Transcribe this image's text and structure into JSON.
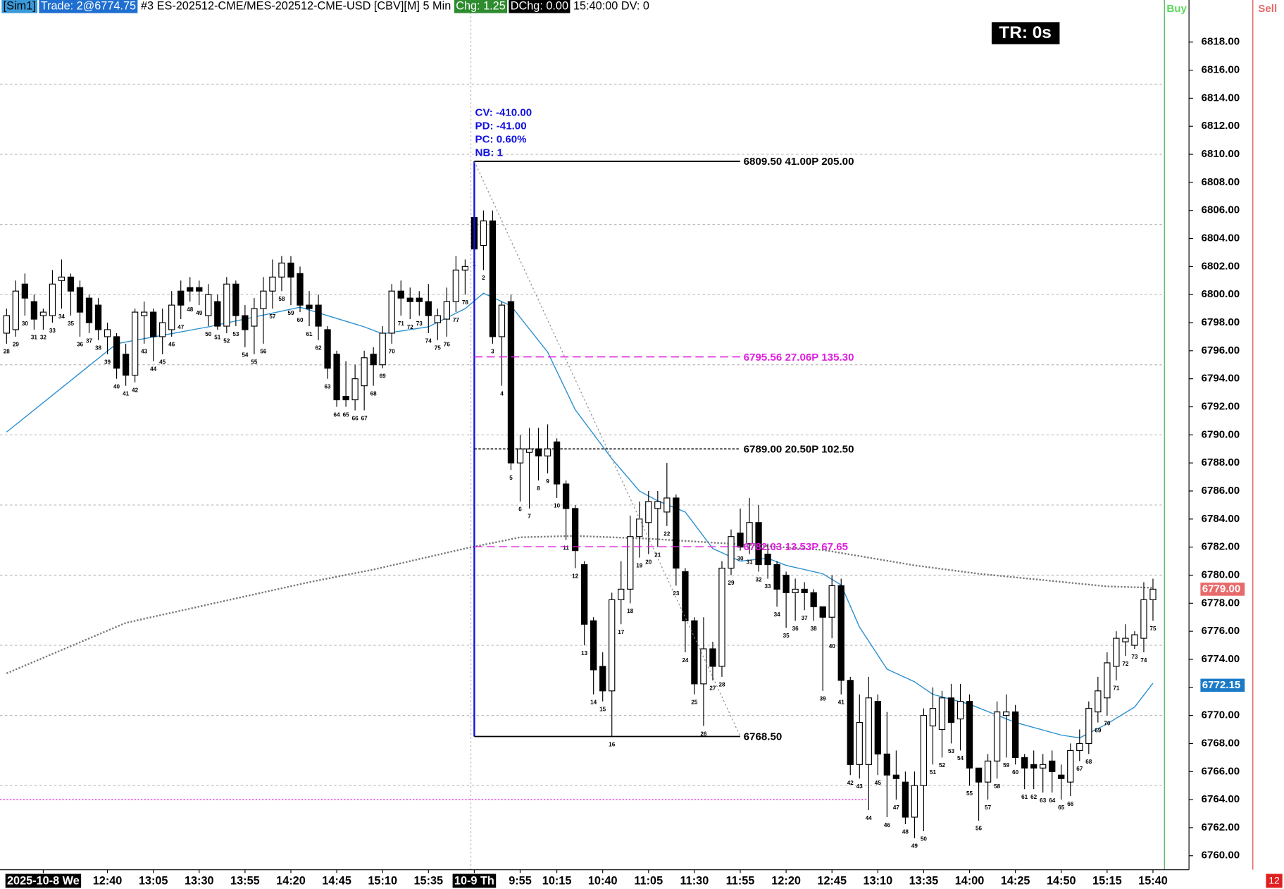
{
  "header": {
    "account": "[Sim1]",
    "trade": "Trade: 2@6774.75",
    "symbol": "#3 ES-202512-CME/MES-202512-CME-USD [CBV][M]  5 Min",
    "chg": "Chg: 1.25",
    "dchg": "DChg: 0.00",
    "status": "15:40:00 DV: 0"
  },
  "tr_label": "TR: 0s",
  "buy_label": "Buy",
  "sell_label": "Sell",
  "corner_label": "12",
  "chart_data": {
    "type": "candlestick",
    "categories": [
      28,
      29,
      30,
      31,
      32,
      33,
      34,
      35,
      36,
      37,
      38,
      39,
      40,
      41,
      42,
      43,
      44,
      45,
      46,
      47,
      48,
      49,
      50,
      51,
      52,
      53,
      54,
      55,
      56,
      57,
      58,
      59,
      60,
      61,
      62,
      63,
      64,
      65,
      66,
      67,
      68,
      69,
      70,
      71,
      72,
      73,
      74,
      75,
      76,
      77,
      78,
      1,
      2,
      3,
      4,
      5,
      6,
      7,
      8,
      9,
      10,
      11,
      12,
      13,
      14,
      15,
      16,
      17,
      18,
      19,
      20,
      21,
      22,
      23,
      24,
      25,
      26,
      27,
      28,
      29,
      30,
      31,
      32,
      33,
      34,
      35,
      36,
      37,
      38,
      39,
      40,
      41,
      42,
      43,
      44,
      45,
      46,
      47,
      48,
      49,
      50,
      51,
      52,
      53,
      54,
      55,
      56,
      57,
      58,
      59,
      60,
      61,
      62,
      63,
      64,
      65,
      66,
      67,
      68,
      69,
      70,
      71,
      72,
      73,
      74,
      75
    ],
    "ohlc": [
      [
        6797.25,
        6799,
        6796.5,
        6798.5
      ],
      [
        6797.5,
        6801,
        6797,
        6800.25
      ],
      [
        6800.75,
        6801.5,
        6798.5,
        6799.75
      ],
      [
        6799.5,
        6800,
        6797.5,
        6798.25
      ],
      [
        6798.5,
        6799,
        6797.5,
        6798.75
      ],
      [
        6798.5,
        6801.75,
        6798,
        6800.75
      ],
      [
        6801,
        6802.5,
        6799,
        6801.25
      ],
      [
        6801.25,
        6801.5,
        6798.5,
        6800.25
      ],
      [
        6800.5,
        6801,
        6797,
        6798.75
      ],
      [
        6799.75,
        6800,
        6797.25,
        6798
      ],
      [
        6799.25,
        6799.75,
        6796.75,
        6797.5
      ],
      [
        6797,
        6798,
        6795.75,
        6797.5
      ],
      [
        6797,
        6797.25,
        6794,
        6794.75
      ],
      [
        6795.75,
        6796.5,
        6793.5,
        6794.25
      ],
      [
        6794.25,
        6799,
        6793.75,
        6798.75
      ],
      [
        6798.5,
        6799.5,
        6796.5,
        6798.75
      ],
      [
        6798.75,
        6799,
        6795.25,
        6797
      ],
      [
        6797,
        6799,
        6795.75,
        6798
      ],
      [
        6797.5,
        6800.25,
        6797,
        6799.25
      ],
      [
        6800.25,
        6801,
        6798.25,
        6799.25
      ],
      [
        6800.5,
        6801.25,
        6799.5,
        6800.25
      ],
      [
        6800.5,
        6801,
        6799.25,
        6800.25
      ],
      [
        6798.5,
        6800.75,
        6797.75,
        6800
      ],
      [
        6799.5,
        6800,
        6797.5,
        6797.75
      ],
      [
        6797.75,
        6801.25,
        6797.25,
        6800.75
      ],
      [
        6800.75,
        6801,
        6797.75,
        6798.5
      ],
      [
        6798.5,
        6799.25,
        6796.25,
        6797.5
      ],
      [
        6797.75,
        6799.75,
        6795.75,
        6799
      ],
      [
        6799,
        6801.25,
        6796.5,
        6800.25
      ],
      [
        6800.25,
        6802.5,
        6799,
        6801.25
      ],
      [
        6801.25,
        6802.75,
        6800.25,
        6802.25
      ],
      [
        6802.25,
        6802.75,
        6799.25,
        6801.25
      ],
      [
        6801.5,
        6802,
        6798.75,
        6799.25
      ],
      [
        6799.25,
        6800.25,
        6797.75,
        6799
      ],
      [
        6799.25,
        6800,
        6796.75,
        6797.75
      ],
      [
        6797.5,
        6797.75,
        6794,
        6794.75
      ],
      [
        6795.75,
        6796,
        6792,
        6792.5
      ],
      [
        6792.75,
        6795.25,
        6792,
        6792.5
      ],
      [
        6792.5,
        6795,
        6791.75,
        6794
      ],
      [
        6793.5,
        6796,
        6791.75,
        6795.5
      ],
      [
        6795.75,
        6796.25,
        6793.5,
        6795
      ],
      [
        6795,
        6797.75,
        6794.75,
        6797.25
      ],
      [
        6797.25,
        6800.75,
        6796.5,
        6800.25
      ],
      [
        6800.25,
        6801,
        6798.5,
        6799.75
      ],
      [
        6799.75,
        6800.5,
        6798.25,
        6799.5
      ],
      [
        6799.75,
        6800.25,
        6798.5,
        6799.5
      ],
      [
        6799.5,
        6800.75,
        6797.25,
        6798.5
      ],
      [
        6798,
        6799,
        6796.75,
        6798.5
      ],
      [
        6798.25,
        6800.5,
        6797,
        6799.5
      ],
      [
        6799.5,
        6802.75,
        6798.75,
        6801.75
      ],
      [
        6801.75,
        6802.5,
        6800,
        6802
      ],
      [
        6805.5,
        6805.75,
        6802.75,
        6803.25
      ],
      [
        6803.5,
        6806,
        6801.75,
        6805.25
      ],
      [
        6805.25,
        6806,
        6796.5,
        6797
      ],
      [
        6797,
        6799.5,
        6793.5,
        6799.25
      ],
      [
        6799.5,
        6800,
        6787.5,
        6788
      ],
      [
        6788,
        6790,
        6785.25,
        6789
      ],
      [
        6788.75,
        6790.5,
        6784.75,
        6789
      ],
      [
        6789,
        6790.5,
        6786.75,
        6788.5
      ],
      [
        6788.5,
        6790.75,
        6787.25,
        6789
      ],
      [
        6789.5,
        6789.75,
        6785.5,
        6786.5
      ],
      [
        6786.5,
        6786.75,
        6782.5,
        6784.75
      ],
      [
        6784.75,
        6785,
        6780.5,
        6781.75
      ],
      [
        6780.75,
        6781,
        6775,
        6776.5
      ],
      [
        6776.75,
        6777,
        6771.5,
        6773.25
      ],
      [
        6773.5,
        6774.5,
        6771,
        6771.75
      ],
      [
        6771.75,
        6778.75,
        6768.5,
        6778.25
      ],
      [
        6778.25,
        6781,
        6776.5,
        6779
      ],
      [
        6779,
        6784.25,
        6778,
        6782.75
      ],
      [
        6782.75,
        6785.25,
        6781.25,
        6784
      ],
      [
        6783.75,
        6786,
        6781.5,
        6785.25
      ],
      [
        6784.75,
        6786,
        6782,
        6785.25
      ],
      [
        6784.5,
        6788,
        6783.5,
        6785.5
      ],
      [
        6785.5,
        6785.75,
        6779.25,
        6780.5
      ],
      [
        6780.25,
        6780.5,
        6774.5,
        6776.75
      ],
      [
        6776.75,
        6777,
        6771.5,
        6772.25
      ],
      [
        6772.25,
        6777,
        6769.25,
        6774.75
      ],
      [
        6774.75,
        6775.25,
        6772.5,
        6773.5
      ],
      [
        6773.5,
        6781,
        6772.75,
        6780.5
      ],
      [
        6780.5,
        6783.25,
        6780,
        6782.75
      ],
      [
        6783,
        6784.75,
        6781.75,
        6782
      ],
      [
        6782.25,
        6785.5,
        6781.5,
        6783.75
      ],
      [
        6783.75,
        6785,
        6780.25,
        6780.75
      ],
      [
        6781.5,
        6782.25,
        6779.75,
        6780.75
      ],
      [
        6780.75,
        6781,
        6777.75,
        6779
      ],
      [
        6780,
        6780.25,
        6776.25,
        6778.75
      ],
      [
        6778.75,
        6779.75,
        6776.75,
        6779
      ],
      [
        6779,
        6779.5,
        6777.5,
        6778.75
      ],
      [
        6778.75,
        6779,
        6776.75,
        6777.75
      ],
      [
        6777.75,
        6777.75,
        6771.75,
        6777
      ],
      [
        6777,
        6780,
        6775.5,
        6779.25
      ],
      [
        6779.25,
        6779.75,
        6771.5,
        6772.5
      ],
      [
        6772.5,
        6772.75,
        6765.75,
        6766.5
      ],
      [
        6766.5,
        6771.5,
        6765.5,
        6769.5
      ],
      [
        6766.5,
        6772.75,
        6763.25,
        6771.25
      ],
      [
        6771,
        6771.5,
        6765.75,
        6767.25
      ],
      [
        6767.25,
        6770.25,
        6762.75,
        6765.75
      ],
      [
        6765.75,
        6767.5,
        6764,
        6765.5
      ],
      [
        6765.25,
        6766,
        6762.25,
        6762.75
      ],
      [
        6762.75,
        6766,
        6761.25,
        6765
      ],
      [
        6765,
        6770.5,
        6761.75,
        6770
      ],
      [
        6769.25,
        6772,
        6766.5,
        6770.5
      ],
      [
        6769,
        6771.75,
        6767,
        6771.25
      ],
      [
        6771.25,
        6772.25,
        6768,
        6769.5
      ],
      [
        6769.75,
        6772.25,
        6767.5,
        6771
      ],
      [
        6771,
        6771.5,
        6765,
        6766.25
      ],
      [
        6766.25,
        6766.25,
        6762.5,
        6765.25
      ],
      [
        6765.25,
        6767.25,
        6764,
        6766.75
      ],
      [
        6766.75,
        6771,
        6765.5,
        6770.25
      ],
      [
        6770,
        6771.5,
        6767,
        6770.25
      ],
      [
        6770.25,
        6770.75,
        6766.5,
        6767
      ],
      [
        6767,
        6767.25,
        6764.75,
        6766.25
      ],
      [
        6766.5,
        6767.5,
        6764.75,
        6766.25
      ],
      [
        6766.25,
        6767.25,
        6764.5,
        6766.5
      ],
      [
        6766.75,
        6767.5,
        6764.5,
        6766
      ],
      [
        6765.75,
        6766.5,
        6764,
        6765.5
      ],
      [
        6765.25,
        6768,
        6764.25,
        6767.5
      ],
      [
        6767.5,
        6769,
        6766.75,
        6768
      ],
      [
        6768,
        6771,
        6767.25,
        6770.5
      ],
      [
        6770.25,
        6772.75,
        6769.5,
        6771.75
      ],
      [
        6771.25,
        6774.5,
        6770,
        6773.75
      ],
      [
        6773.5,
        6776,
        6772.5,
        6775.5
      ],
      [
        6775.25,
        6776.5,
        6774.25,
        6775.5
      ],
      [
        6775,
        6776,
        6774.75,
        6775.75
      ],
      [
        6775.5,
        6779.5,
        6774.5,
        6778.25
      ],
      [
        6778.25,
        6779.75,
        6776.75,
        6779
      ]
    ],
    "up_color": "#ffffff",
    "down_color": "#000000",
    "series": [
      {
        "x": [
          0,
          12,
          22,
          32,
          39,
          41,
          46,
          50,
          52,
          55,
          59,
          62,
          66,
          69,
          71,
          74,
          77,
          80,
          83,
          85,
          89,
          91,
          93,
          96,
          99,
          101,
          105,
          110,
          115,
          117,
          120,
          123,
          125
        ],
        "values": [
          6790.2,
          6796.5,
          6797.7,
          6799.1,
          6797.7,
          6797.2,
          6797.7,
          6799,
          6800.1,
          6799.2,
          6795.9,
          6791.8,
          6788.3,
          6786,
          6785.3,
          6784.5,
          6781.9,
          6781,
          6781.2,
          6780.7,
          6780.1,
          6779.3,
          6776.3,
          6773.3,
          6772.4,
          6771.5,
          6770.8,
          6769.5,
          6768.6,
          6768.4,
          6769.4,
          6770.6,
          6772.3
        ],
        "color": "#2a8fd0",
        "dotted": false
      },
      {
        "x": [
          0,
          13,
          33,
          40,
          50,
          56,
          62,
          70,
          80,
          89,
          99,
          106,
          120,
          125
        ],
        "values": [
          6773,
          6776.6,
          6779.5,
          6780.4,
          6781.9,
          6782.7,
          6782.8,
          6782.6,
          6782.2,
          6781.8,
          6780.7,
          6780.1,
          6779.2,
          6779.1
        ],
        "color": "#777777",
        "dotted": true
      }
    ],
    "ylim": [
      6759,
      6821
    ],
    "yticks": [
      {
        "value": 6760,
        "label": "6760.00"
      },
      {
        "value": 6762,
        "label": "6762.00"
      },
      {
        "value": 6764,
        "label": "6764.00"
      },
      {
        "value": 6766,
        "label": "6766.00"
      },
      {
        "value": 6768,
        "label": "6768.00"
      },
      {
        "value": 6770,
        "label": "6770.00"
      },
      {
        "value": 6772,
        "label": "6772.00"
      },
      {
        "value": 6774,
        "label": "6774.00"
      },
      {
        "value": 6776,
        "label": "6776.00"
      },
      {
        "value": 6778,
        "label": "6778.00"
      },
      {
        "value": 6780,
        "label": "6780.00"
      },
      {
        "value": 6782,
        "label": "6782.00"
      },
      {
        "value": 6784,
        "label": "6784.00"
      },
      {
        "value": 6786,
        "label": "6786.00"
      },
      {
        "value": 6788,
        "label": "6788.00"
      },
      {
        "value": 6790,
        "label": "6790.00"
      },
      {
        "value": 6792,
        "label": "6792.00"
      },
      {
        "value": 6794,
        "label": "6794.00"
      },
      {
        "value": 6796,
        "label": "6796.00"
      },
      {
        "value": 6798,
        "label": "6798.00"
      },
      {
        "value": 6800,
        "label": "6800.00"
      },
      {
        "value": 6802,
        "label": "6802.00"
      },
      {
        "value": 6804,
        "label": "6804.00"
      },
      {
        "value": 6806,
        "label": "6806.00"
      },
      {
        "value": 6808,
        "label": "6808.00"
      },
      {
        "value": 6810,
        "label": "6810.00"
      },
      {
        "value": 6812,
        "label": "6812.00"
      },
      {
        "value": 6814,
        "label": "6814.00"
      },
      {
        "value": 6816,
        "label": "6816.00"
      },
      {
        "value": 6818,
        "label": "6818.00"
      }
    ],
    "ygrid": [
      6765,
      6770,
      6775,
      6780,
      6785,
      6790,
      6795,
      6800,
      6805,
      6810,
      6815
    ],
    "xticks": [
      {
        "value": 4,
        "label": "2025-10-8 We",
        "boxed": true
      },
      {
        "value": 11,
        "label": "12:40"
      },
      {
        "value": 16,
        "label": "13:05"
      },
      {
        "value": 21,
        "label": "13:30"
      },
      {
        "value": 26,
        "label": "13:55"
      },
      {
        "value": 31,
        "label": "14:20"
      },
      {
        "value": 36,
        "label": "14:45"
      },
      {
        "value": 41,
        "label": "15:10"
      },
      {
        "value": 46,
        "label": "15:35"
      },
      {
        "value": 51,
        "label": "10-9 Th",
        "boxed": true
      },
      {
        "value": 56,
        "label": "9:55"
      },
      {
        "value": 60,
        "label": "10:15"
      },
      {
        "value": 65,
        "label": "10:40"
      },
      {
        "value": 70,
        "label": "11:05"
      },
      {
        "value": 75,
        "label": "11:30"
      },
      {
        "value": 80,
        "label": "11:55"
      },
      {
        "value": 85,
        "label": "12:20"
      },
      {
        "value": 90,
        "label": "12:45"
      },
      {
        "value": 95,
        "label": "13:10"
      },
      {
        "value": 100,
        "label": "13:35"
      },
      {
        "value": 105,
        "label": "14:00"
      },
      {
        "value": 110,
        "label": "14:25"
      },
      {
        "value": 115,
        "label": "14:50"
      },
      {
        "value": 120,
        "label": "15:15"
      },
      {
        "value": 125,
        "label": "15:40"
      }
    ],
    "hlines": [
      {
        "value": 6764,
        "color": "#e020e0"
      }
    ],
    "levels": [
      {
        "value": 6809.5,
        "label": "6809.50 41.00P 205.00",
        "color": "#000000",
        "dashed": false
      },
      {
        "value": 6795.56,
        "label": "6795.56 27.06P 135.30",
        "color": "#e020e0",
        "dashed": true
      },
      {
        "value": 6789,
        "label": "6789.00 20.50P 102.50",
        "color": "#000000",
        "dashed": true
      },
      {
        "value": 6782.03,
        "label": "6782.03 13.53P 67.65",
        "color": "#e020e0",
        "dashed": true
      },
      {
        "value": 6768.5,
        "label": "6768.50",
        "color": "#000000",
        "dashed": false
      }
    ],
    "info": [
      "CV: -410.00",
      "PD: -41.00",
      "PC: 0.60%",
      "NB: 1"
    ],
    "price_markers": [
      {
        "value": 6779,
        "label": "6779.00",
        "color": "#e86a6a"
      },
      {
        "value": 6772.15,
        "label": "6772.15",
        "color": "#1a7ac8"
      }
    ]
  }
}
